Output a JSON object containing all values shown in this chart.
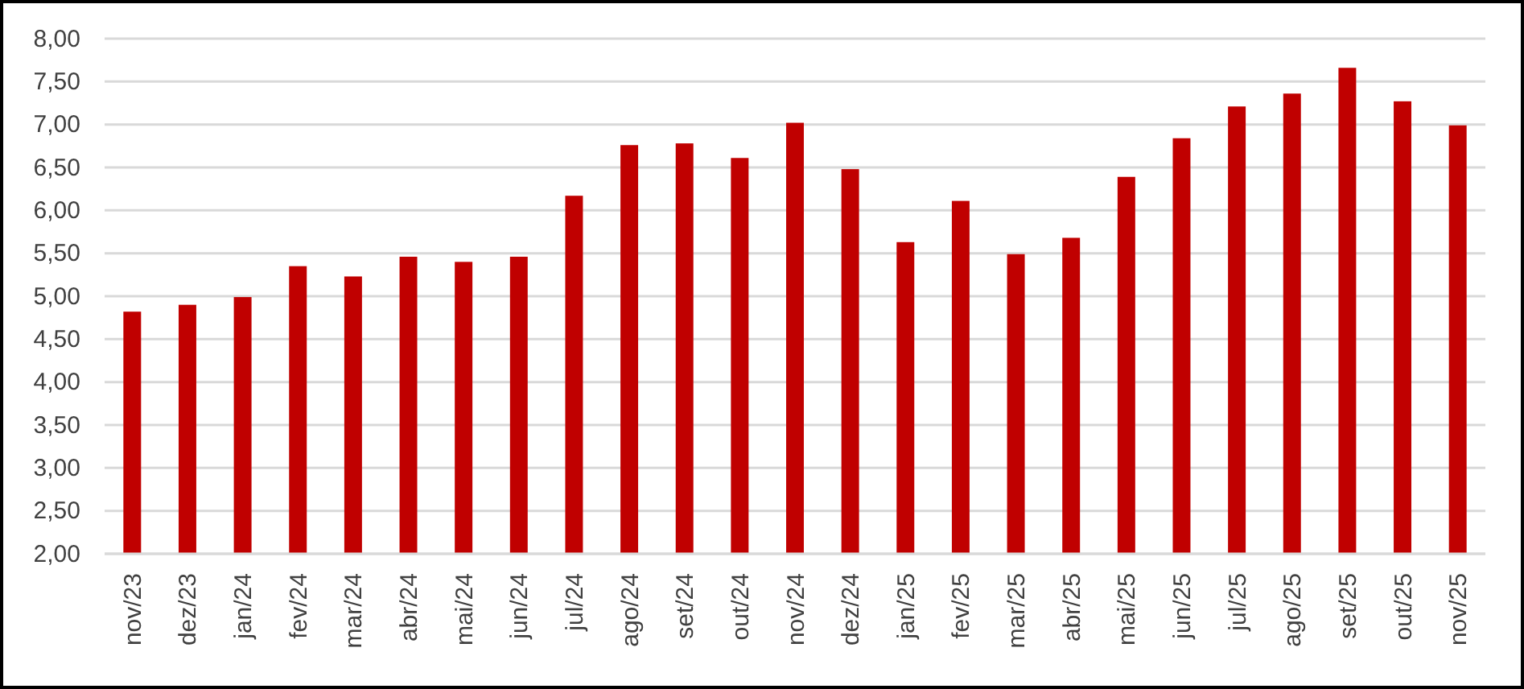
{
  "chart_data": {
    "type": "bar",
    "categories": [
      "nov/23",
      "dez/23",
      "jan/24",
      "fev/24",
      "mar/24",
      "abr/24",
      "mai/24",
      "jun/24",
      "jul/24",
      "ago/24",
      "set/24",
      "out/24",
      "nov/24",
      "dez/24",
      "jan/25",
      "fev/25",
      "mar/25",
      "abr/25",
      "mai/25",
      "jun/25",
      "jul/25",
      "ago/25",
      "set/25",
      "out/25",
      "nov/25"
    ],
    "values": [
      4.82,
      4.9,
      4.99,
      5.35,
      5.23,
      5.46,
      5.4,
      5.46,
      6.17,
      6.76,
      6.78,
      6.61,
      7.02,
      6.48,
      5.63,
      6.11,
      5.49,
      5.68,
      6.39,
      6.84,
      7.21,
      7.36,
      7.66,
      7.27,
      6.99
    ],
    "color": "#c00000",
    "ylim": [
      2,
      8
    ],
    "yticks": [
      {
        "value": 2,
        "label": "2,00"
      },
      {
        "value": 2.5,
        "label": "2,50"
      },
      {
        "value": 3,
        "label": "3,00"
      },
      {
        "value": 3.5,
        "label": "3,50"
      },
      {
        "value": 4,
        "label": "4,00"
      },
      {
        "value": 4.5,
        "label": "4,50"
      },
      {
        "value": 5,
        "label": "5,00"
      },
      {
        "value": 5.5,
        "label": "5,50"
      },
      {
        "value": 6,
        "label": "6,00"
      },
      {
        "value": 6.5,
        "label": "6,50"
      },
      {
        "value": 7,
        "label": "7,00"
      },
      {
        "value": 7.5,
        "label": "7,50"
      },
      {
        "value": 8,
        "label": "8,00"
      }
    ],
    "grid": "y"
  }
}
